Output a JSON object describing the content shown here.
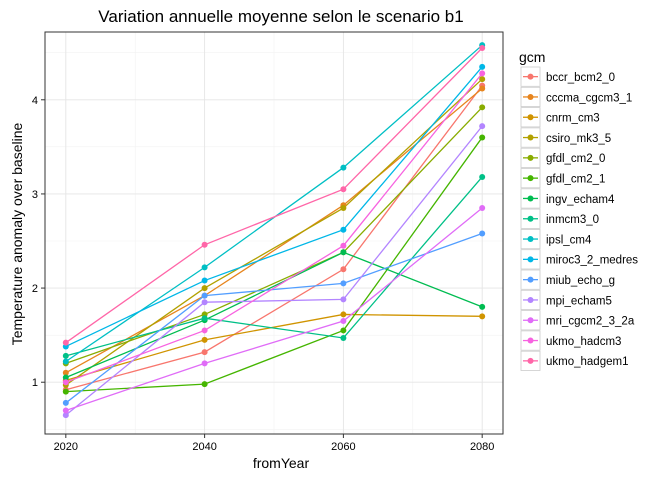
{
  "chart_data": {
    "type": "line",
    "title": "Variation annuelle moyenne selon le scenario b1",
    "xlabel": "fromYear",
    "ylabel": "Temperature anomaly over baseline",
    "x": [
      2020,
      2040,
      2060,
      2080
    ],
    "xticks": [
      "2020",
      "2040",
      "2060",
      "2080"
    ],
    "yticks": [
      "1",
      "2",
      "3",
      "4"
    ],
    "xlim": [
      2017,
      2083
    ],
    "ylim": [
      0.45,
      4.72
    ],
    "grid": true,
    "legend_position": "right",
    "legend_title": "gcm",
    "series": [
      {
        "name": "bccr_bcm2_0",
        "color": "#F8766D",
        "values": [
          0.92,
          1.32,
          2.2,
          4.15
        ]
      },
      {
        "name": "cccma_cgcm3_1",
        "color": "#E7851E",
        "values": [
          1.1,
          1.92,
          2.88,
          4.12
        ]
      },
      {
        "name": "cnrm_cm3",
        "color": "#D09400",
        "values": [
          1.02,
          1.45,
          1.72,
          1.7
        ]
      },
      {
        "name": "csiro_mk3_5",
        "color": "#B2A100",
        "values": [
          0.97,
          2.0,
          2.85,
          4.22
        ]
      },
      {
        "name": "gfdl_cm2_0",
        "color": "#89AC00",
        "values": [
          1.2,
          1.72,
          2.38,
          3.92
        ]
      },
      {
        "name": "gfdl_cm2_1",
        "color": "#45B500",
        "values": [
          0.9,
          0.98,
          1.55,
          3.6
        ]
      },
      {
        "name": "ingv_echam4",
        "color": "#00BC51",
        "values": [
          1.05,
          1.66,
          2.38,
          1.8
        ]
      },
      {
        "name": "inmcm3_0",
        "color": "#00C087",
        "values": [
          1.28,
          1.68,
          1.47,
          3.18
        ]
      },
      {
        "name": "ipsl_cm4",
        "color": "#00BFC4",
        "values": [
          1.22,
          2.22,
          3.28,
          4.58
        ]
      },
      {
        "name": "miroc3_2_medres",
        "color": "#00B7E7",
        "values": [
          1.38,
          2.08,
          2.62,
          4.35
        ]
      },
      {
        "name": "miub_echo_g",
        "color": "#529EFF",
        "values": [
          0.78,
          1.92,
          2.05,
          2.58
        ]
      },
      {
        "name": "mpi_echam5",
        "color": "#B385FF",
        "values": [
          0.65,
          1.85,
          1.88,
          3.72
        ]
      },
      {
        "name": "mri_cgcm2_3_2a",
        "color": "#E06CF7",
        "values": [
          0.7,
          1.2,
          1.65,
          2.85
        ]
      },
      {
        "name": "ukmo_hadcm3",
        "color": "#F763E0",
        "values": [
          1.0,
          1.55,
          2.45,
          4.28
        ]
      },
      {
        "name": "ukmo_hadgem1",
        "color": "#FF66A8",
        "values": [
          1.42,
          2.46,
          3.05,
          4.55
        ]
      }
    ]
  }
}
